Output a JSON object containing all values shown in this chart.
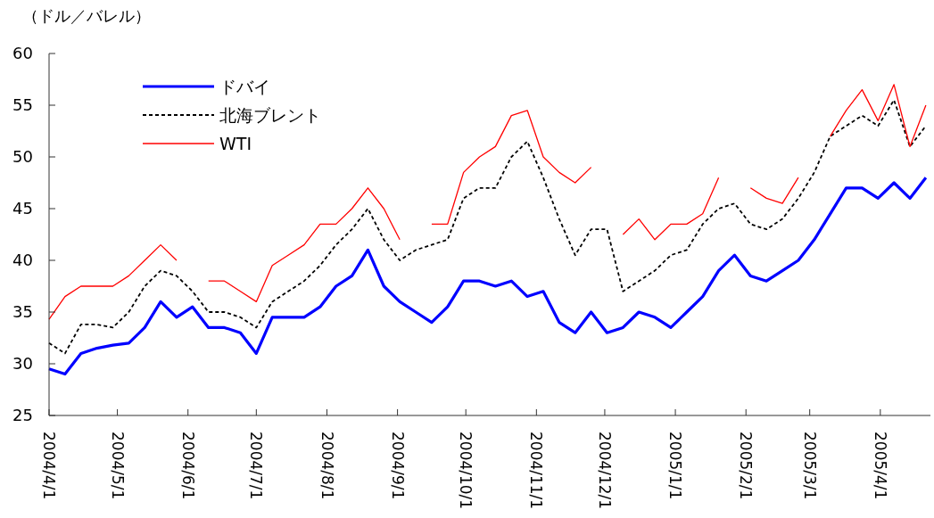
{
  "chart_data": {
    "type": "line",
    "ylabel": "（ドル／バレル）",
    "x": [
      "2004-04-01",
      "2004-04-08",
      "2004-04-15",
      "2004-04-22",
      "2004-04-29",
      "2004-05-06",
      "2004-05-13",
      "2004-05-20",
      "2004-05-27",
      "2004-06-03",
      "2004-06-10",
      "2004-06-17",
      "2004-06-24",
      "2004-07-01",
      "2004-07-08",
      "2004-07-15",
      "2004-07-22",
      "2004-07-29",
      "2004-08-05",
      "2004-08-12",
      "2004-08-19",
      "2004-08-26",
      "2004-09-02",
      "2004-09-09",
      "2004-09-16",
      "2004-09-23",
      "2004-09-30",
      "2004-10-07",
      "2004-10-14",
      "2004-10-21",
      "2004-10-28",
      "2004-11-04",
      "2004-11-11",
      "2004-11-18",
      "2004-11-25",
      "2004-12-02",
      "2004-12-09",
      "2004-12-16",
      "2004-12-23",
      "2004-12-30",
      "2005-01-06",
      "2005-01-13",
      "2005-01-20",
      "2005-01-27",
      "2005-02-03",
      "2005-02-10",
      "2005-02-17",
      "2005-02-24",
      "2005-03-03",
      "2005-03-10",
      "2005-03-17",
      "2005-03-24",
      "2005-03-31",
      "2005-04-07",
      "2005-04-14",
      "2005-04-21"
    ],
    "series": [
      {
        "name": "ドバイ",
        "color": "#0000ff",
        "line_style": "solid",
        "values": [
          29.5,
          29.0,
          31.0,
          31.5,
          31.8,
          32.0,
          33.5,
          36.0,
          34.5,
          35.5,
          33.5,
          33.5,
          33.0,
          31.0,
          34.5,
          34.5,
          34.5,
          35.5,
          37.5,
          38.5,
          41.0,
          37.5,
          36.0,
          35.0,
          34.0,
          35.5,
          38.0,
          38.0,
          37.5,
          38.0,
          36.5,
          37.0,
          34.0,
          33.0,
          35.0,
          33.0,
          33.5,
          35.0,
          34.5,
          33.5,
          35.0,
          36.5,
          39.0,
          40.5,
          38.5,
          38.0,
          39.0,
          40.0,
          42.0,
          44.5,
          47.0,
          47.0,
          46.0,
          47.5,
          46.0,
          48.0
        ]
      },
      {
        "name": "北海ブレント",
        "color": "#000000",
        "line_style": "dashed",
        "values": [
          32.0,
          31.0,
          33.8,
          33.8,
          33.5,
          35.0,
          37.5,
          39.0,
          38.5,
          37.0,
          35.0,
          35.0,
          34.5,
          33.5,
          36.0,
          37.0,
          38.0,
          39.5,
          41.5,
          43.0,
          45.0,
          42.0,
          40.0,
          41.0,
          41.5,
          42.0,
          46.0,
          47.0,
          47.0,
          50.0,
          51.5,
          48.0,
          44.0,
          40.5,
          43.0,
          43.0,
          37.0,
          38.0,
          39.0,
          40.5,
          41.0,
          43.5,
          45.0,
          45.5,
          43.5,
          43.0,
          44.0,
          46.0,
          48.5,
          52.0,
          53.0,
          54.0,
          53.0,
          55.5,
          51.0,
          53.0
        ]
      },
      {
        "name": "WTI",
        "color": "#ff0000",
        "line_style": "solid",
        "values": [
          34.3,
          36.5,
          37.5,
          37.5,
          37.5,
          38.5,
          40.0,
          41.5,
          40.0,
          null,
          38.0,
          38.0,
          37.0,
          36.0,
          39.5,
          40.5,
          41.5,
          43.5,
          43.5,
          45.0,
          47.0,
          45.0,
          42.0,
          null,
          43.5,
          43.5,
          48.5,
          50.0,
          51.0,
          54.0,
          54.5,
          50.0,
          48.5,
          47.5,
          49.0,
          null,
          42.5,
          44.0,
          42.0,
          43.5,
          43.5,
          44.5,
          48.0,
          null,
          47.0,
          46.0,
          45.5,
          48.0,
          null,
          52.0,
          54.5,
          56.5,
          53.5,
          57.0,
          51.0,
          55.0
        ]
      }
    ],
    "xlim": [
      "2004-04-01",
      "2005-04-23"
    ],
    "xticks": [
      {
        "value": "2004-04-01",
        "label": "2004/4/1"
      },
      {
        "value": "2004-05-01",
        "label": "2004/5/1"
      },
      {
        "value": "2004-06-01",
        "label": "2004/6/1"
      },
      {
        "value": "2004-07-01",
        "label": "2004/7/1"
      },
      {
        "value": "2004-08-01",
        "label": "2004/8/1"
      },
      {
        "value": "2004-09-01",
        "label": "2004/9/1"
      },
      {
        "value": "2004-10-01",
        "label": "2004/10/1"
      },
      {
        "value": "2004-11-01",
        "label": "2004/11/1"
      },
      {
        "value": "2004-12-01",
        "label": "2004/12/1"
      },
      {
        "value": "2005-01-01",
        "label": "2005/1/1"
      },
      {
        "value": "2005-02-01",
        "label": "2005/2/1"
      },
      {
        "value": "2005-03-01",
        "label": "2005/3/1"
      },
      {
        "value": "2005-04-01",
        "label": "2005/4/1"
      }
    ],
    "ylim": [
      25,
      60
    ],
    "yticks": [
      25,
      30,
      35,
      40,
      45,
      50,
      55,
      60
    ],
    "legend": "top left",
    "grid": false
  }
}
